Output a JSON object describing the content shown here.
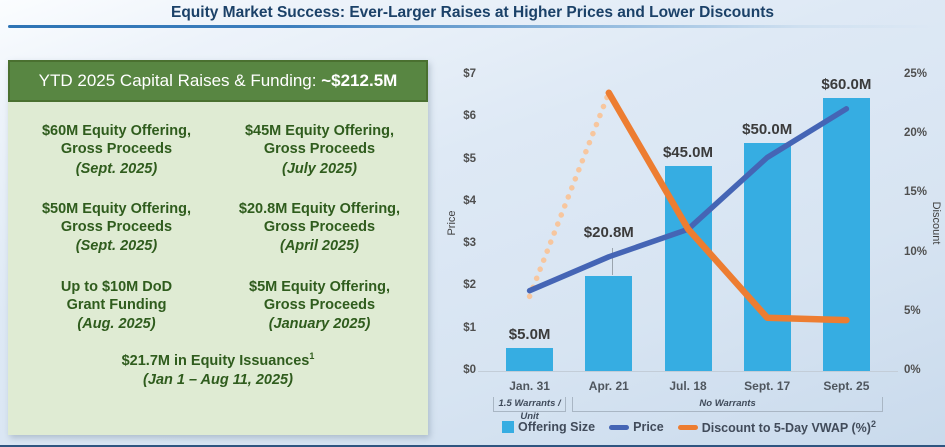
{
  "slide": {
    "title": "Equity Market Success: Ever-Larger Raises at Higher Prices and Lower Discounts"
  },
  "capital_box": {
    "header_prefix": "YTD 2025 Capital Raises & Funding: ",
    "header_amount": "~$212.5M",
    "items": [
      {
        "l1": "$60M Equity Offering,",
        "l2": "Gross Proceeds",
        "date": "(Sept. 2025)"
      },
      {
        "l1": "$45M Equity Offering,",
        "l2": "Gross Proceeds",
        "date": "(July 2025)"
      },
      {
        "l1": "$50M Equity Offering,",
        "l2": "Gross Proceeds",
        "date": "(Sept. 2025)"
      },
      {
        "l1": "$20.8M Equity Offering,",
        "l2": "Gross Proceeds",
        "date": "(April 2025)"
      },
      {
        "l1": "Up to $10M DoD",
        "l2": "Grant Funding",
        "date": "(Aug. 2025)"
      },
      {
        "l1": "$5M Equity Offering,",
        "l2": "Gross Proceeds",
        "date": "(January 2025)"
      }
    ],
    "summary": {
      "text": "$21.7M in Equity Issuances",
      "sup": "1",
      "date": "(Jan 1 – Aug 11, 2025)"
    }
  },
  "chart_data": {
    "type": "bar",
    "subtype": "combo-bar-and-lines",
    "x": [
      "Jan. 31",
      "Apr. 21",
      "Jul. 18",
      "Sept. 17",
      "Sept. 25"
    ],
    "bars": {
      "name": "Offering Size",
      "values_musd": [
        5.0,
        20.8,
        45.0,
        50.0,
        60.0
      ],
      "labels": [
        "$5.0M",
        "$20.8M",
        "$45.0M",
        "$50.0M",
        "$60.0M"
      ],
      "color": "#36ADE2",
      "display_scale_max": 65,
      "callout_index": 1
    },
    "lines": [
      {
        "name": "Price",
        "axis": "left",
        "values_usd": [
          1.9,
          2.7,
          3.35,
          5.05,
          6.2
        ],
        "color": "#4565B5",
        "style": "solid"
      },
      {
        "name": "Discount to 5-Day VWAP (%)",
        "axis": "right",
        "values_pct": [
          6.3,
          23.5,
          12.0,
          4.5,
          4.3
        ],
        "color": "#ED7D31",
        "dotted_through_index": 1,
        "dotted_color": "#F7C69E"
      }
    ],
    "left_axis": {
      "title": "Price",
      "min": 0,
      "max": 7,
      "tick_labels": [
        "$0",
        "$1",
        "$2",
        "$3",
        "$4",
        "$5",
        "$6",
        "$7"
      ]
    },
    "right_axis": {
      "title": "Discount",
      "min": 0,
      "max": 25,
      "tick_labels": [
        "0%",
        "5%",
        "10%",
        "15%",
        "20%",
        "25%"
      ]
    },
    "x_brackets": [
      {
        "label": "1.5 Warrants / Unit",
        "from_index": 0,
        "to_index": 0
      },
      {
        "label": "No Warrants",
        "from_index": 1,
        "to_index": 4
      }
    ],
    "legend": [
      {
        "label": "Offering Size",
        "marker": "square",
        "color": "#36ADE2"
      },
      {
        "label": "Price",
        "marker": "line",
        "color": "#4565B5"
      },
      {
        "label": "Discount to 5-Day VWAP (%)",
        "sup": "2",
        "marker": "line",
        "color": "#ED7D31"
      }
    ],
    "grid": "off",
    "legend_position": "bottom"
  }
}
